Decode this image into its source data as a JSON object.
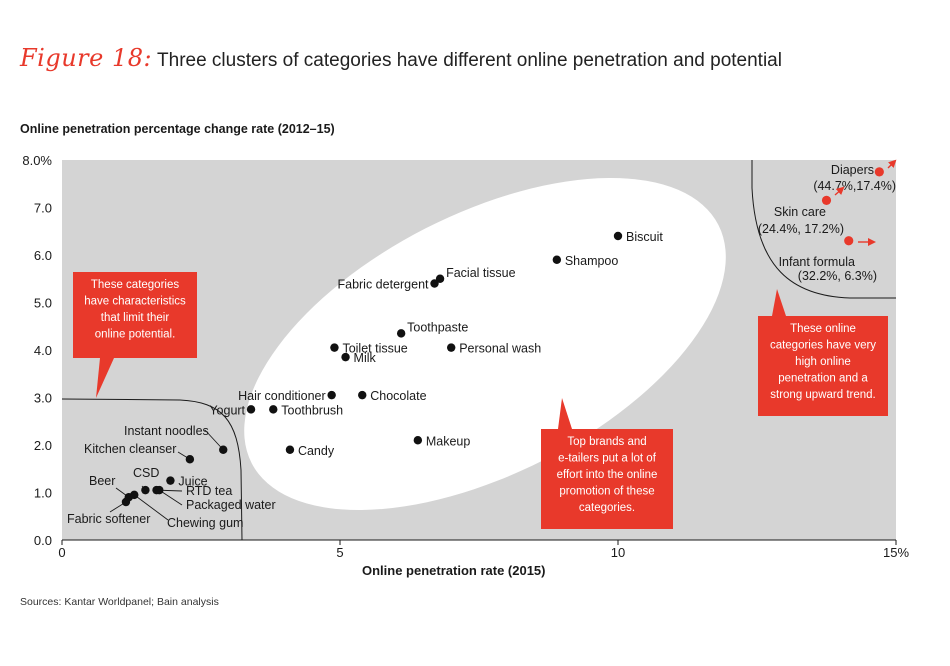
{
  "figure": {
    "label": "Figure 18:",
    "title": "Three clusters of categories have different online penetration and potential"
  },
  "source": "Sources: Kantar Worldpanel; Bain analysis",
  "colors": {
    "accent": "#e8392b",
    "plot_bg": "#d4d4d4",
    "point": "#111111"
  },
  "chart_data": {
    "type": "scatter",
    "title": "Three clusters of categories have different online penetration and potential",
    "xlabel": "Online penetration rate (2015)",
    "ylabel": "Online penetration percentage change rate (2012–15)",
    "xlim": [
      0,
      15
    ],
    "ylim": [
      0,
      8
    ],
    "x_ticks": [
      {
        "value": 0,
        "label": "0"
      },
      {
        "value": 5,
        "label": "5"
      },
      {
        "value": 10,
        "label": "10"
      },
      {
        "value": 15,
        "label": "15%"
      }
    ],
    "y_ticks": [
      {
        "value": 0,
        "label": "0.0"
      },
      {
        "value": 1,
        "label": "1.0"
      },
      {
        "value": 2,
        "label": "2.0"
      },
      {
        "value": 3,
        "label": "3.0"
      },
      {
        "value": 4,
        "label": "4.0"
      },
      {
        "value": 5,
        "label": "5.0"
      },
      {
        "value": 6,
        "label": "6.0"
      },
      {
        "value": 7,
        "label": "7.0"
      },
      {
        "value": 8,
        "label": "8.0%"
      }
    ],
    "points": [
      {
        "name": "Biscuit",
        "x": 10.0,
        "y": 6.4,
        "label_pos": "right"
      },
      {
        "name": "Shampoo",
        "x": 8.9,
        "y": 5.9,
        "label_pos": "right"
      },
      {
        "name": "Facial tissue",
        "x": 6.8,
        "y": 5.5,
        "label_pos": "right-up"
      },
      {
        "name": "Fabric detergent",
        "x": 6.7,
        "y": 5.4,
        "label_pos": "left"
      },
      {
        "name": "Toothpaste",
        "x": 6.1,
        "y": 4.35,
        "label_pos": "right-up"
      },
      {
        "name": "Personal wash",
        "x": 7.0,
        "y": 4.05,
        "label_pos": "right"
      },
      {
        "name": "Toilet tissue",
        "x": 4.9,
        "y": 4.05,
        "label_pos": "right"
      },
      {
        "name": "Milk",
        "x": 5.1,
        "y": 3.85,
        "label_pos": "right"
      },
      {
        "name": "Hair conditioner",
        "x": 4.85,
        "y": 3.05,
        "label_pos": "left"
      },
      {
        "name": "Chocolate",
        "x": 5.4,
        "y": 3.05,
        "label_pos": "right"
      },
      {
        "name": "Yogurt",
        "x": 3.4,
        "y": 2.75,
        "label_pos": "left"
      },
      {
        "name": "Toothbrush",
        "x": 3.8,
        "y": 2.75,
        "label_pos": "right"
      },
      {
        "name": "Makeup",
        "x": 6.4,
        "y": 2.1,
        "label_pos": "right"
      },
      {
        "name": "Candy",
        "x": 4.1,
        "y": 1.9,
        "label_pos": "right"
      },
      {
        "name": "Instant noodles",
        "x": 2.9,
        "y": 1.9,
        "label_pos": "leader"
      },
      {
        "name": "Kitchen cleanser",
        "x": 2.3,
        "y": 1.7,
        "label_pos": "leader"
      },
      {
        "name": "Juice",
        "x": 1.95,
        "y": 1.25,
        "label_pos": "right"
      },
      {
        "name": "CSD",
        "x": 1.5,
        "y": 1.05,
        "label_pos": "leader"
      },
      {
        "name": "RTD tea",
        "x": 1.7,
        "y": 1.05,
        "label_pos": "leader"
      },
      {
        "name": "Packaged water",
        "x": 1.75,
        "y": 1.05,
        "label_pos": "leader"
      },
      {
        "name": "Beer",
        "x": 1.2,
        "y": 0.9,
        "label_pos": "leader"
      },
      {
        "name": "Fabric softener",
        "x": 1.15,
        "y": 0.8,
        "label_pos": "leader"
      },
      {
        "name": "Chewing gum",
        "x": 1.3,
        "y": 0.95,
        "label_pos": "leader"
      }
    ],
    "highlighted_points": [
      {
        "name": "Diapers",
        "detail": "(44.7%,17.4%)",
        "x": 14.7,
        "y": 7.75
      },
      {
        "name": "Skin care",
        "detail": "(24.4%, 17.2%)",
        "x": 13.75,
        "y": 7.15
      },
      {
        "name": "Infant formula",
        "detail": "(32.2%, 6.3%)",
        "x": 14.15,
        "y": 6.3
      }
    ],
    "callouts": [
      {
        "id": "low",
        "text": "These categories have characteristics that limit their online potential."
      },
      {
        "id": "mid",
        "text": "Top brands and e-tailers put a lot of effort into the online promotion of these categories."
      },
      {
        "id": "high",
        "text": "These online categories have very high online penetration and a strong upward trend."
      }
    ]
  }
}
